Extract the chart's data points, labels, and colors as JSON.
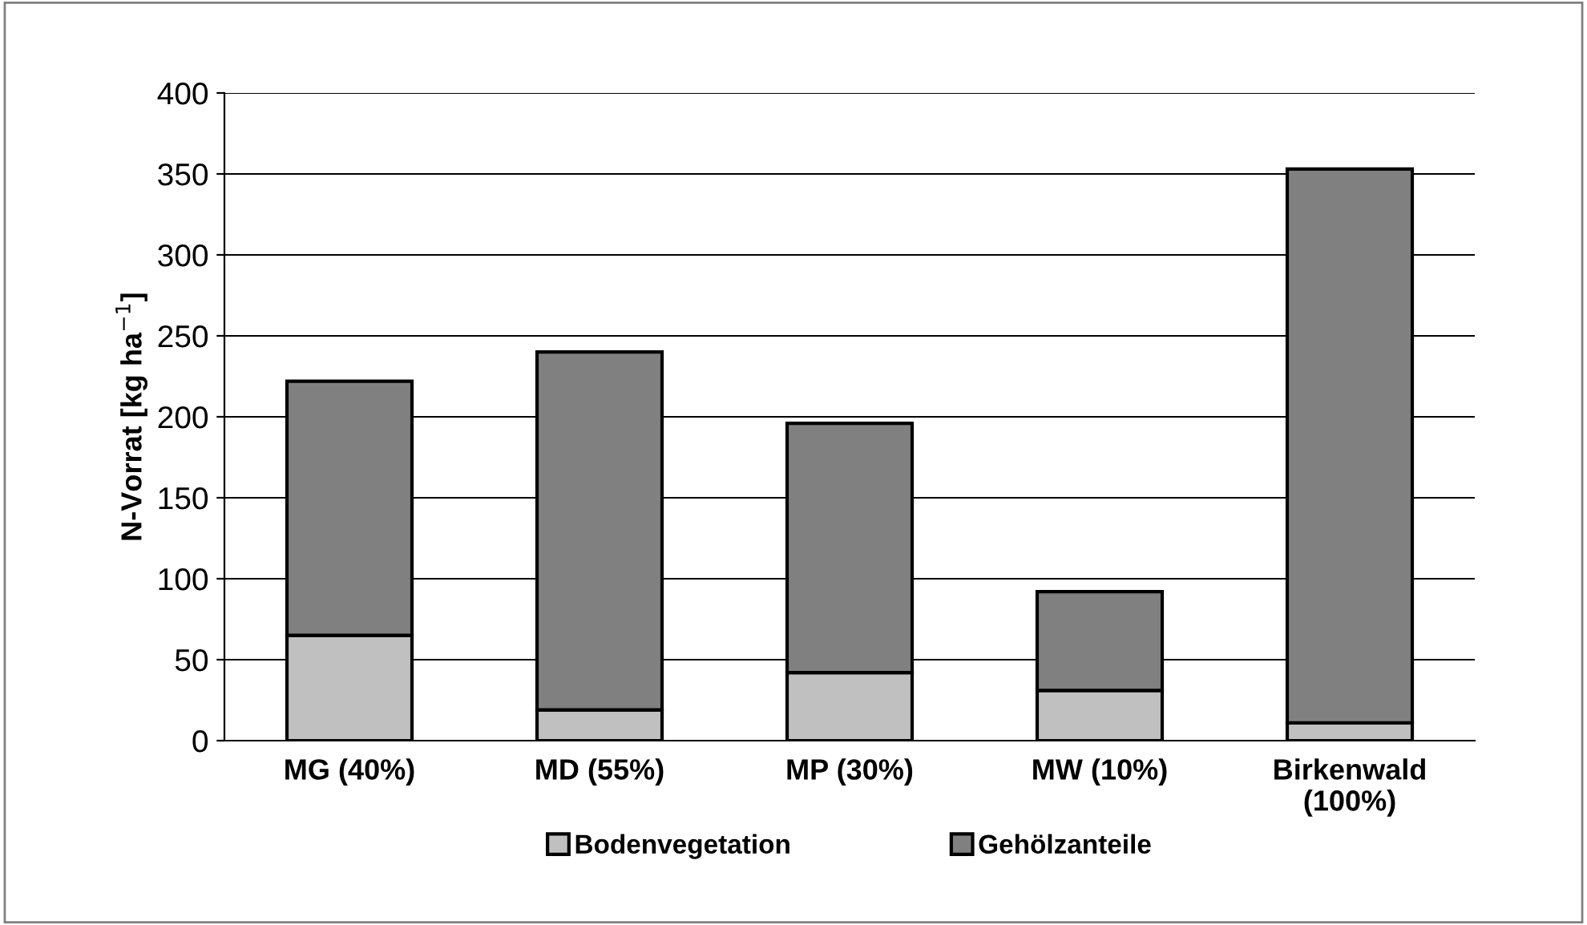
{
  "chart_data": {
    "type": "bar",
    "stacked": true,
    "ylabel": "N-Vorrat [kg ha$^{−1}$]",
    "categories": [
      "MG (40%)",
      "MD (55%)",
      "MP (30%)",
      "MW (10%)",
      "Birkenwald\n(100%)"
    ],
    "series": [
      {
        "name": "Bodenvegetation",
        "color": "#c0c0c0",
        "values": [
          65,
          19,
          42,
          31,
          11
        ]
      },
      {
        "name": "Gehölzanteile",
        "color": "#808080",
        "values": [
          157,
          221,
          154,
          61,
          342
        ]
      }
    ],
    "ylim": [
      0,
      400
    ],
    "yticks": [
      0,
      50,
      100,
      150,
      200,
      250,
      300,
      350,
      400
    ],
    "grid": "y",
    "legend": "bottom"
  }
}
